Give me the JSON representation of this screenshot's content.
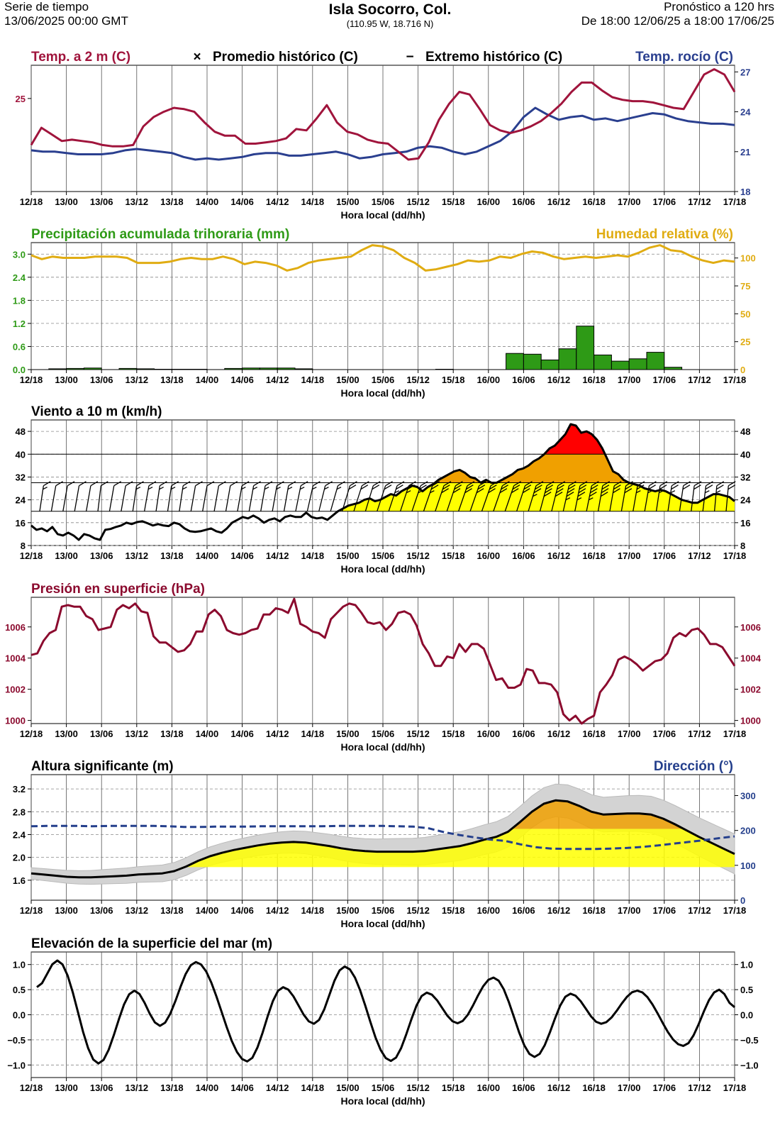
{
  "header": {
    "left_line1": "Serie de tiempo",
    "left_line2": "13/06/2025 00:00 GMT",
    "title": "Isla Socorro,  Col.",
    "coords": "(110.95 W, 18.716 N)",
    "right_line1": "Pronóstico a 120 hrs",
    "right_line2": "De 18:00 12/06/25 a 18:00 17/06/25"
  },
  "colors": {
    "temp": "#a0143c",
    "dew": "#2a3f8f",
    "precip": "#2e9a16",
    "humidity": "#e0ac12",
    "pressure": "#8b0a2e",
    "wave_dir": "#243f8c",
    "wind_yellow": "#ffff00",
    "wind_orange": "#f0a000",
    "wind_red": "#ff0000"
  },
  "chart_data": [
    {
      "id": "temp",
      "type": "line",
      "title_left": "Temp. a 2 m (C)",
      "title_right": "Temp. rocío (C)",
      "legend": [
        "Promedio histórico (C)",
        "Extremo histórico (C)"
      ],
      "legend_symbols": [
        "×",
        "−"
      ],
      "xlabel": "Hora local (dd/hh)",
      "x_ticks": [
        "12/18",
        "13/00",
        "13/06",
        "13/12",
        "13/18",
        "14/00",
        "14/06",
        "14/12",
        "14/18",
        "15/00",
        "15/06",
        "15/12",
        "15/18",
        "16/00",
        "16/06",
        "16/12",
        "16/18",
        "17/00",
        "17/06",
        "17/12",
        "17/18"
      ],
      "y_left_ticks": [
        25
      ],
      "y_right_ticks": [
        18,
        21,
        24,
        27
      ],
      "ylim": [
        18,
        27.5
      ],
      "series": [
        {
          "name": "Temp. a 2 m (C)",
          "color": "#a0143c",
          "values": [
            21.5,
            22.8,
            22.3,
            21.8,
            21.9,
            21.8,
            21.7,
            21.5,
            21.4,
            21.4,
            21.5,
            22.9,
            23.6,
            24.0,
            24.3,
            24.2,
            24.0,
            23.2,
            22.5,
            22.2,
            22.2,
            21.6,
            21.6,
            21.7,
            21.8,
            22.0,
            22.7,
            22.6,
            23.5,
            24.5,
            23.2,
            22.5,
            22.3,
            21.9,
            21.7,
            21.6,
            21.0,
            20.4,
            20.5,
            21.7,
            23.4,
            24.6,
            25.5,
            25.3,
            24.2,
            23.0,
            22.6,
            22.4,
            22.6,
            22.9,
            23.3,
            23.9,
            24.6,
            25.5,
            26.2,
            26.2,
            25.6,
            25.1,
            24.9,
            24.8,
            24.8,
            24.7,
            24.5,
            24.3,
            24.2,
            25.5,
            26.8,
            27.2,
            26.8,
            25.5
          ]
        },
        {
          "name": "Temp. rocío (C)",
          "color": "#2a3f8f",
          "values": [
            21.1,
            21.0,
            21.0,
            20.9,
            20.8,
            20.8,
            20.8,
            20.9,
            21.1,
            21.2,
            21.1,
            21.0,
            20.9,
            20.6,
            20.4,
            20.5,
            20.4,
            20.5,
            20.6,
            20.8,
            20.9,
            20.9,
            20.7,
            20.7,
            20.8,
            20.9,
            21.0,
            20.8,
            20.5,
            20.6,
            20.8,
            20.9,
            21.0,
            21.3,
            21.4,
            21.3,
            21.0,
            20.8,
            21.0,
            21.4,
            21.8,
            22.5,
            23.6,
            24.3,
            23.8,
            23.4,
            23.6,
            23.7,
            23.4,
            23.5,
            23.3,
            23.5,
            23.7,
            23.9,
            23.8,
            23.5,
            23.3,
            23.2,
            23.1,
            23.1,
            23.0
          ]
        }
      ]
    },
    {
      "id": "precip",
      "type": "bar",
      "title_left": "Precipitación acumulada trihoraria (mm)",
      "title_right": "Humedad relativa (%)",
      "xlabel": "Hora local (dd/hh)",
      "x_ticks": [
        "12/18",
        "13/00",
        "13/06",
        "13/12",
        "13/18",
        "14/00",
        "14/06",
        "14/12",
        "14/18",
        "15/00",
        "15/06",
        "15/12",
        "15/18",
        "16/00",
        "16/06",
        "16/12",
        "16/18",
        "17/00",
        "17/06",
        "17/12",
        "17/18"
      ],
      "y_left_ticks": [
        "0.0",
        "0.6",
        "1.2",
        "1.8",
        "2.4",
        "3.0"
      ],
      "y_right_ticks": [
        "0",
        "25",
        "50",
        "75",
        "100"
      ],
      "ylim": [
        0,
        3.3
      ],
      "y_right_lim": [
        0,
        100
      ],
      "series": [
        {
          "name": "Precipitación acumulada trihoraria (mm)",
          "color": "#2e9a16",
          "values": [
            0,
            0.02,
            0.03,
            0.04,
            0,
            0.03,
            0.02,
            0.01,
            0.01,
            0.01,
            0,
            0.03,
            0.04,
            0.04,
            0.04,
            0.02,
            0,
            0,
            0,
            0,
            0,
            0,
            0,
            0.01,
            0,
            0,
            0,
            0.42,
            0.4,
            0.25,
            0.54,
            1.13,
            0.38,
            0.22,
            0.28,
            0.45,
            0.06,
            0,
            0,
            0,
            0
          ]
        },
        {
          "name": "Humedad relativa (%)",
          "color": "#e0ac12",
          "values": [
            90,
            87,
            89,
            88,
            88,
            88,
            89,
            89,
            89,
            88,
            84,
            84,
            84,
            85,
            87,
            88,
            87,
            87,
            89,
            87,
            83,
            85,
            84,
            82,
            78,
            80,
            84,
            86,
            87,
            88,
            89,
            94,
            98,
            97,
            94,
            88,
            84,
            78,
            79,
            81,
            83,
            86,
            85,
            86,
            89,
            88,
            91,
            93,
            92,
            89,
            87,
            88,
            89,
            88,
            89,
            90,
            89,
            92,
            96,
            98,
            94,
            93,
            89,
            86,
            84,
            86,
            85
          ]
        }
      ]
    },
    {
      "id": "wind",
      "type": "line",
      "title_left": "Viento a 10 m (km/h)",
      "xlabel": "Hora local (dd/hh)",
      "x_ticks": [
        "12/18",
        "13/00",
        "13/06",
        "13/12",
        "13/18",
        "14/00",
        "14/06",
        "14/12",
        "14/18",
        "15/00",
        "15/06",
        "15/12",
        "15/18",
        "16/00",
        "16/06",
        "16/12",
        "16/18",
        "17/00",
        "17/06",
        "17/12",
        "17/18"
      ],
      "y_ticks": [
        8,
        16,
        24,
        32,
        40,
        48
      ],
      "ylim": [
        8,
        52
      ],
      "thresholds": [
        20,
        30,
        40
      ],
      "series": [
        {
          "name": "Viento a 10 m (km/h)",
          "color": "#000000",
          "values": [
            15,
            13.5,
            14,
            13,
            14.5,
            12,
            11.5,
            12.5,
            11.5,
            10,
            12,
            11.5,
            10.5,
            10,
            13.5,
            13.8,
            14.5,
            15,
            16,
            15.5,
            16.2,
            16.5,
            15.8,
            15,
            15.5,
            15,
            14.8,
            16,
            15.5,
            14,
            13,
            12.8,
            13,
            13.5,
            14,
            13,
            12.5,
            14,
            16,
            17,
            18,
            17.5,
            18.5,
            17.5,
            16,
            17,
            17.5,
            16.5,
            18,
            18.5,
            18,
            18,
            19.5,
            18,
            17.5,
            17.8,
            17,
            18.5,
            20,
            21,
            22,
            22.5,
            23,
            24,
            24.5,
            23.5,
            24,
            25,
            26,
            25.5,
            27,
            28,
            29,
            28.5,
            27,
            28.5,
            29.5,
            31,
            32,
            33,
            34,
            34.5,
            33.5,
            32,
            31.5,
            30,
            31,
            30,
            30,
            31,
            32,
            33,
            34.5,
            35,
            36,
            37.5,
            38.5,
            40,
            42,
            43,
            45,
            47,
            50.5,
            50,
            47.5,
            48,
            47,
            45,
            42,
            38,
            34,
            33,
            31,
            30,
            29.5,
            29,
            28,
            27.5,
            27,
            27.5,
            27,
            26,
            25,
            24,
            23.5,
            23,
            23,
            24,
            25,
            26,
            26,
            25.5,
            25,
            23.5
          ]
        }
      ],
      "direction_deg": [
        205,
        210,
        210,
        210,
        210,
        200,
        210,
        210,
        205,
        210,
        205,
        205,
        205,
        210,
        210,
        210,
        210,
        210,
        210,
        210,
        210,
        210,
        215,
        220,
        225,
        235,
        240,
        245,
        240,
        250,
        250,
        250,
        255,
        260,
        255,
        255,
        260,
        265,
        270,
        275,
        280,
        290,
        300,
        310,
        315,
        320,
        325,
        325,
        330,
        330,
        330,
        330,
        330,
        335,
        335,
        335,
        340,
        340,
        345,
        345
      ]
    },
    {
      "id": "pressure",
      "type": "line",
      "title_left": "Presión en superficie (hPa)",
      "xlabel": "Hora local (dd/hh)",
      "x_ticks": [
        "12/18",
        "13/00",
        "13/06",
        "13/12",
        "13/18",
        "14/00",
        "14/06",
        "14/12",
        "14/18",
        "15/00",
        "15/06",
        "15/12",
        "15/18",
        "16/00",
        "16/06",
        "16/12",
        "16/18",
        "17/00",
        "17/06",
        "17/12",
        "17/18"
      ],
      "y_ticks": [
        1000,
        1002,
        1004,
        1006
      ],
      "ylim": [
        999.8,
        1007.9
      ],
      "series": [
        {
          "name": "Presión en superficie (hPa)",
          "color": "#8b0a2e",
          "values": [
            1004.2,
            1004.3,
            1005.1,
            1005.6,
            1005.8,
            1007.3,
            1007.4,
            1007.3,
            1007.3,
            1006.7,
            1006.5,
            1005.8,
            1005.9,
            1006.0,
            1007.1,
            1007.4,
            1007.2,
            1007.5,
            1007.0,
            1006.9,
            1005.4,
            1005.0,
            1005.0,
            1004.7,
            1004.4,
            1004.5,
            1004.9,
            1005.7,
            1005.7,
            1006.8,
            1007.1,
            1006.7,
            1005.8,
            1005.6,
            1005.5,
            1005.6,
            1005.8,
            1005.9,
            1006.8,
            1006.8,
            1007.2,
            1007.1,
            1006.9,
            1007.8,
            1006.2,
            1006.0,
            1005.7,
            1005.6,
            1005.3,
            1006.5,
            1006.9,
            1007.3,
            1007.5,
            1007.4,
            1006.9,
            1006.3,
            1006.2,
            1006.3,
            1005.8,
            1006.2,
            1006.9,
            1007.0,
            1006.8,
            1006.1,
            1004.9,
            1004.3,
            1003.5,
            1003.5,
            1004.1,
            1004.0,
            1004.9,
            1004.4,
            1004.9,
            1004.9,
            1004.6,
            1003.6,
            1002.6,
            1002.7,
            1002.1,
            1002.1,
            1002.3,
            1003.3,
            1003.2,
            1002.4,
            1002.4,
            1002.3,
            1001.8,
            1000.4,
            1000.0,
            1000.3,
            999.8,
            1000.1,
            1000.3,
            1001.8,
            1002.3,
            1002.9,
            1003.9,
            1004.1,
            1003.9,
            1003.6,
            1003.2,
            1003.5,
            1003.8,
            1003.9,
            1004.3,
            1005.3,
            1005.6,
            1005.4,
            1005.8,
            1005.9,
            1005.5,
            1004.9,
            1004.9,
            1004.7,
            1004.1,
            1003.5
          ]
        }
      ]
    },
    {
      "id": "waves",
      "type": "area",
      "title_left": "Altura significante (m)",
      "title_right": "Dirección (°)",
      "xlabel": "Hora local (dd/hh)",
      "x_ticks": [
        "12/18",
        "13/00",
        "13/06",
        "13/12",
        "13/18",
        "14/00",
        "14/06",
        "14/12",
        "14/18",
        "15/00",
        "15/06",
        "15/12",
        "15/18",
        "16/00",
        "16/06",
        "16/12",
        "16/18",
        "17/00",
        "17/06",
        "17/12",
        "17/18"
      ],
      "y_left_ticks": [
        "1.6",
        "2.0",
        "2.4",
        "2.8",
        "3.2"
      ],
      "y_right_ticks": [
        "0",
        "100",
        "200",
        "300"
      ],
      "ylim": [
        1.25,
        3.45
      ],
      "y_right_lim": [
        0,
        360
      ],
      "series": [
        {
          "name": "Altura significante (m)",
          "color": "#000000",
          "values": [
            1.72,
            1.7,
            1.68,
            1.66,
            1.65,
            1.65,
            1.66,
            1.67,
            1.68,
            1.7,
            1.71,
            1.72,
            1.76,
            1.84,
            1.94,
            2.02,
            2.08,
            2.13,
            2.17,
            2.21,
            2.24,
            2.26,
            2.27,
            2.26,
            2.23,
            2.2,
            2.16,
            2.13,
            2.11,
            2.1,
            2.1,
            2.1,
            2.1,
            2.11,
            2.14,
            2.17,
            2.2,
            2.25,
            2.31,
            2.36,
            2.45,
            2.62,
            2.8,
            2.94,
            3.0,
            2.98,
            2.9,
            2.8,
            2.75,
            2.76,
            2.77,
            2.77,
            2.75,
            2.68,
            2.58,
            2.47,
            2.36,
            2.26,
            2.16,
            2.06
          ]
        },
        {
          "name": "Dirección (°)",
          "color": "#243f8c",
          "values": [
            212,
            213,
            213,
            213,
            212,
            213,
            213,
            213,
            213,
            212,
            210,
            210,
            211,
            211,
            211,
            212,
            212,
            212,
            212,
            212,
            213,
            213,
            213,
            213,
            212,
            211,
            206,
            195,
            187,
            180,
            174,
            170,
            160,
            152,
            148,
            147,
            147,
            147,
            148,
            150,
            153,
            157,
            162,
            167,
            172,
            178,
            183
          ]
        }
      ]
    },
    {
      "id": "sea",
      "type": "line",
      "title_left": "Elevación de la superficie del mar (m)",
      "xlabel": "Hora local (dd/hh)",
      "x_ticks": [
        "12/18",
        "13/00",
        "13/06",
        "13/12",
        "13/18",
        "14/00",
        "14/06",
        "14/12",
        "14/18",
        "15/00",
        "15/06",
        "15/12",
        "15/18",
        "16/00",
        "16/06",
        "16/12",
        "16/18",
        "17/00",
        "17/06",
        "17/12",
        "17/18"
      ],
      "y_left_ticks": [
        "1.0",
        "0.5",
        "0.0",
        "−0.5",
        "−1.0"
      ],
      "y_right_ticks": [
        "1.0",
        "0.5",
        "0.0",
        "−0.5",
        "−1.0"
      ],
      "ylim": [
        -1.25,
        1.25
      ],
      "series": [
        {
          "name": "Elevación de la superficie del mar (m)",
          "color": "#000000",
          "values": []
        }
      ]
    }
  ]
}
